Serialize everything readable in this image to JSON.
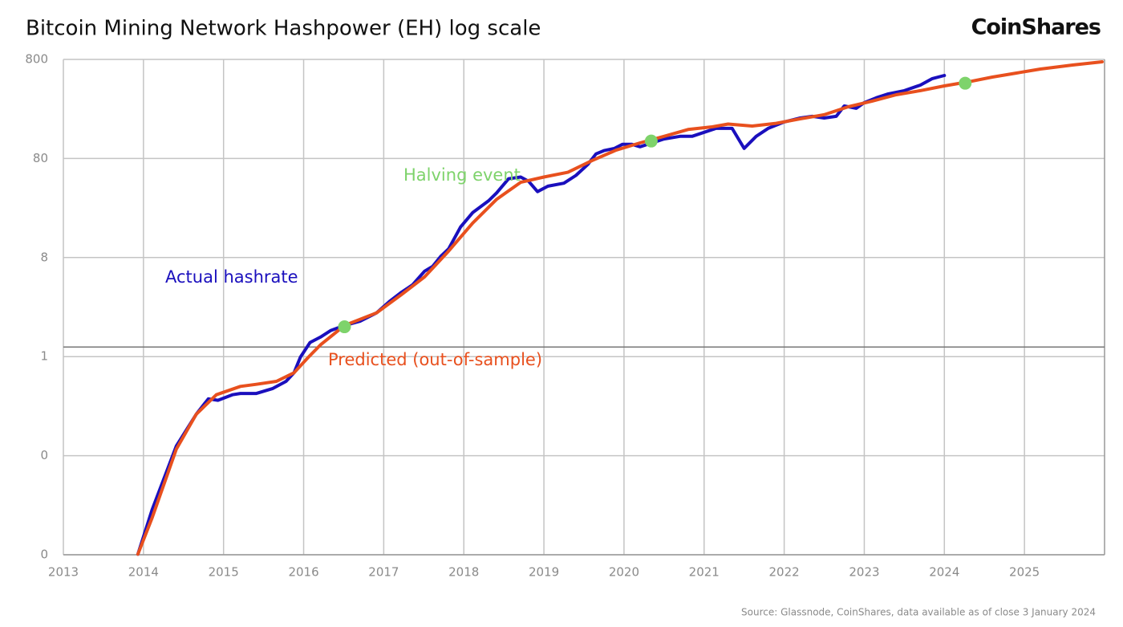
{
  "chart_data": {
    "type": "line",
    "title": "Bitcoin Mining Network Hashpower (EH) log scale",
    "brand": "CoinShares",
    "source": "Source: Glassnode, CoinShares, data available as of close 3 January 2024",
    "log_y": true,
    "grid": true,
    "xlim": [
      2013,
      2026
    ],
    "xticks": [
      2013,
      2014,
      2015,
      2016,
      2017,
      2018,
      2019,
      2020,
      2021,
      2022,
      2023,
      2024,
      2025
    ],
    "ylim": [
      0.008,
      800
    ],
    "yticks": [
      800,
      80,
      8,
      {
        "value": 0.8,
        "label": "1"
      },
      {
        "value": 0.08,
        "label": "0"
      },
      {
        "value": 0.008,
        "label": "0"
      }
    ],
    "reference_line": 1,
    "series": [
      {
        "name": "Actual hashrate",
        "color": "#1a0fbd",
        "style": "line",
        "x": [
          2013.93,
          2014.11,
          2014.41,
          2014.66,
          2014.81,
          2014.93,
          2015.11,
          2015.21,
          2015.41,
          2015.61,
          2015.78,
          2015.88,
          2015.96,
          2016.08,
          2016.21,
          2016.34,
          2016.51,
          2016.71,
          2016.91,
          2017.08,
          2017.21,
          2017.36,
          2017.51,
          2017.61,
          2017.71,
          2017.81,
          2017.96,
          2018.11,
          2018.31,
          2018.41,
          2018.56,
          2018.71,
          2018.81,
          2018.92,
          2019.05,
          2019.25,
          2019.4,
          2019.55,
          2019.65,
          2019.75,
          2019.88,
          2019.98,
          2020.1,
          2020.2,
          2020.35,
          2020.5,
          2020.7,
          2020.85,
          2021.0,
          2021.15,
          2021.35,
          2021.5,
          2021.65,
          2021.8,
          2022.0,
          2022.2,
          2022.35,
          2022.5,
          2022.65,
          2022.75,
          2022.9,
          2023.0,
          2023.15,
          2023.3,
          2023.5,
          2023.7,
          2023.85,
          2024.0
        ],
        "values": [
          0.0081,
          0.023,
          0.1,
          0.21,
          0.3,
          0.29,
          0.33,
          0.34,
          0.34,
          0.38,
          0.45,
          0.55,
          0.79,
          1.11,
          1.26,
          1.47,
          1.65,
          1.83,
          2.21,
          2.92,
          3.52,
          4.24,
          5.83,
          6.5,
          8.2,
          9.8,
          16.3,
          22.7,
          30,
          36,
          50,
          52,
          47,
          37,
          42,
          45,
          54,
          70,
          89,
          96,
          101,
          111,
          111,
          105,
          115,
          126,
          134,
          134,
          147,
          161,
          161,
          101,
          134,
          161,
          187,
          205,
          213,
          205,
          213,
          271,
          257,
          293,
          328,
          359,
          387,
          440,
          512,
          551
        ]
      },
      {
        "name": "Predicted (out-of-sample)",
        "color": "#e8501e",
        "style": "line",
        "x": [
          2013.93,
          2014.11,
          2014.41,
          2014.66,
          2014.91,
          2015.21,
          2015.41,
          2015.66,
          2015.88,
          2016.06,
          2016.21,
          2016.51,
          2016.91,
          2017.21,
          2017.51,
          2017.81,
          2018.11,
          2018.41,
          2018.71,
          2019.0,
          2019.3,
          2019.6,
          2019.9,
          2020.2,
          2020.5,
          2020.8,
          2021.1,
          2021.3,
          2021.6,
          2021.9,
          2022.2,
          2022.5,
          2022.8,
          2023.1,
          2023.4,
          2023.7,
          2024.0,
          2024.3,
          2024.6,
          2024.9,
          2025.2,
          2025.6,
          2025.97
        ],
        "values": [
          0.0081,
          0.019,
          0.093,
          0.21,
          0.33,
          0.4,
          0.42,
          0.45,
          0.55,
          0.79,
          1.05,
          1.65,
          2.21,
          3.33,
          5.1,
          9.3,
          17.8,
          31,
          46,
          52,
          58,
          76,
          97,
          115,
          134,
          157,
          167,
          178,
          170,
          181,
          201,
          221,
          266,
          304,
          352,
          387,
          432,
          475,
          531,
          583,
          640,
          702,
          756
        ]
      },
      {
        "name": "Halving event",
        "color": "#7ed36b",
        "style": "points",
        "x": [
          2016.51,
          2020.34,
          2024.26
        ],
        "values": [
          1.6,
          120,
          460
        ]
      }
    ]
  }
}
